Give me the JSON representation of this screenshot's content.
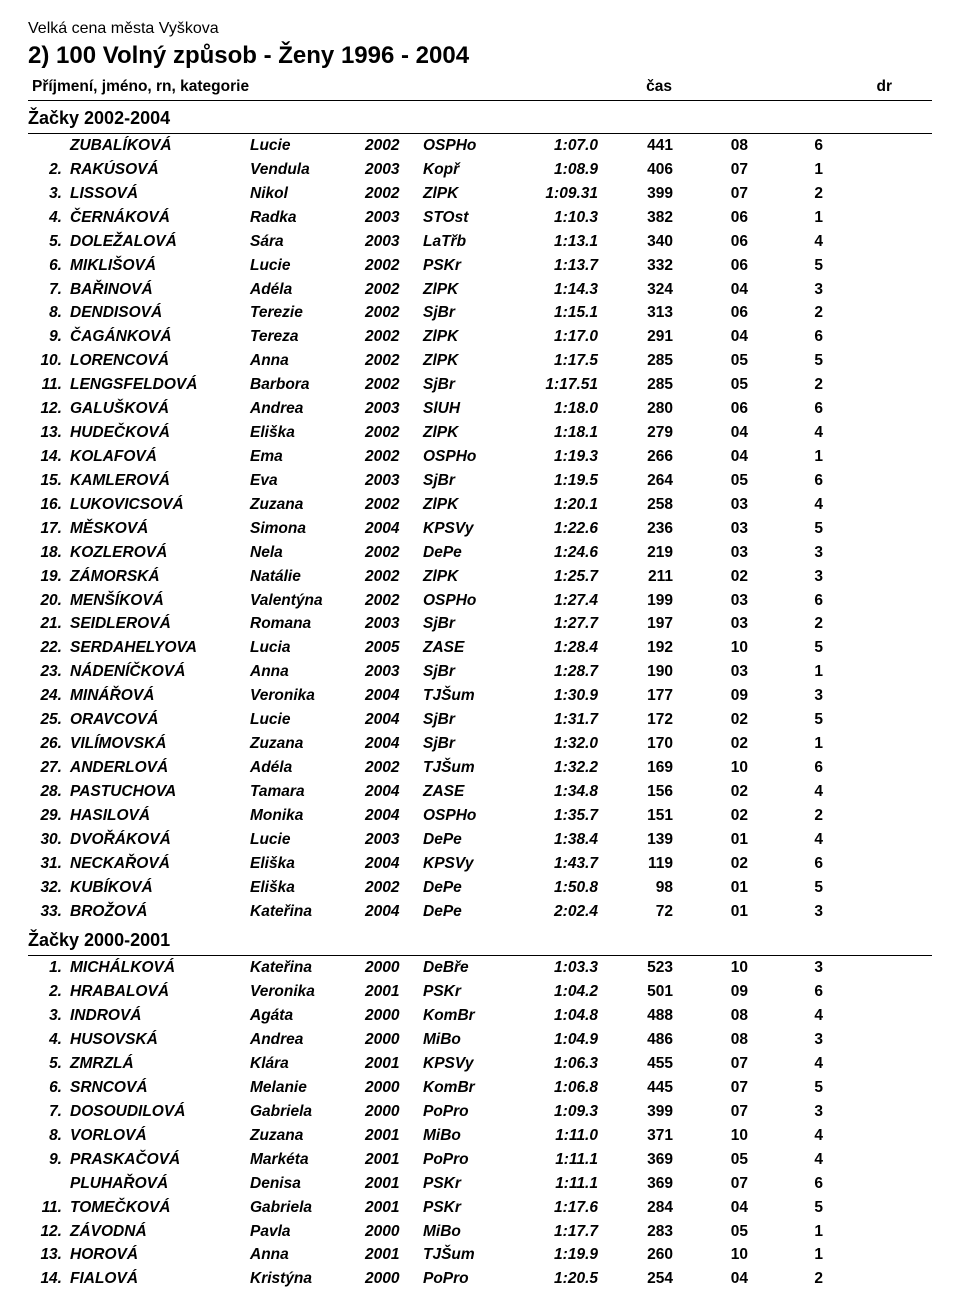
{
  "meet_name": "Velká cena města Vyškova",
  "event_title": "2)  100  Volný způsob  -  Ženy  1996 - 2004",
  "header": {
    "name": "Příjmení, jméno, rn, kategorie",
    "time": "čas",
    "dr": "dr"
  },
  "sections": [
    {
      "title": "Žačky 2002-2004",
      "rows": [
        {
          "rank": "",
          "last": "ZUBALÍKOVÁ",
          "first": "Lucie",
          "year": "2002",
          "club": "OSPHo",
          "time": "1:07.0",
          "pts": "441",
          "c1": "08",
          "c2": "6"
        },
        {
          "rank": "2.",
          "last": "RAKÚSOVÁ",
          "first": "Vendula",
          "year": "2003",
          "club": "Kopř",
          "time": "1:08.9",
          "pts": "406",
          "c1": "07",
          "c2": "1"
        },
        {
          "rank": "3.",
          "last": "LISSOVÁ",
          "first": "Nikol",
          "year": "2002",
          "club": "ZlPK",
          "time": "1:09.31",
          "pts": "399",
          "c1": "07",
          "c2": "2"
        },
        {
          "rank": "4.",
          "last": "ČERNÁKOVÁ",
          "first": "Radka",
          "year": "2003",
          "club": "STOst",
          "time": "1:10.3",
          "pts": "382",
          "c1": "06",
          "c2": "1"
        },
        {
          "rank": "5.",
          "last": "DOLEŽALOVÁ",
          "first": "Sára",
          "year": "2003",
          "club": "LaTřb",
          "time": "1:13.1",
          "pts": "340",
          "c1": "06",
          "c2": "4"
        },
        {
          "rank": "6.",
          "last": "MIKLIŠOVÁ",
          "first": "Lucie",
          "year": "2002",
          "club": "PSKr",
          "time": "1:13.7",
          "pts": "332",
          "c1": "06",
          "c2": "5"
        },
        {
          "rank": "7.",
          "last": "BAŘINOVÁ",
          "first": "Adéla",
          "year": "2002",
          "club": "ZlPK",
          "time": "1:14.3",
          "pts": "324",
          "c1": "04",
          "c2": "3"
        },
        {
          "rank": "8.",
          "last": "DENDISOVÁ",
          "first": "Terezie",
          "year": "2002",
          "club": "SjBr",
          "time": "1:15.1",
          "pts": "313",
          "c1": "06",
          "c2": "2"
        },
        {
          "rank": "9.",
          "last": "ČAGÁNKOVÁ",
          "first": "Tereza",
          "year": "2002",
          "club": "ZlPK",
          "time": "1:17.0",
          "pts": "291",
          "c1": "04",
          "c2": "6"
        },
        {
          "rank": "10.",
          "last": "LORENCOVÁ",
          "first": "Anna",
          "year": "2002",
          "club": "ZlPK",
          "time": "1:17.5",
          "pts": "285",
          "c1": "05",
          "c2": "5"
        },
        {
          "rank": "11.",
          "last": "LENGSFELDOVÁ",
          "first": "Barbora",
          "year": "2002",
          "club": "SjBr",
          "time": "1:17.51",
          "pts": "285",
          "c1": "05",
          "c2": "2"
        },
        {
          "rank": "12.",
          "last": "GALUŠKOVÁ",
          "first": "Andrea",
          "year": "2003",
          "club": "SlUH",
          "time": "1:18.0",
          "pts": "280",
          "c1": "06",
          "c2": "6"
        },
        {
          "rank": "13.",
          "last": "HUDEČKOVÁ",
          "first": "Eliška",
          "year": "2002",
          "club": "ZlPK",
          "time": "1:18.1",
          "pts": "279",
          "c1": "04",
          "c2": "4"
        },
        {
          "rank": "14.",
          "last": "KOLAFOVÁ",
          "first": "Ema",
          "year": "2002",
          "club": "OSPHo",
          "time": "1:19.3",
          "pts": "266",
          "c1": "04",
          "c2": "1"
        },
        {
          "rank": "15.",
          "last": "KAMLEROVÁ",
          "first": "Eva",
          "year": "2003",
          "club": "SjBr",
          "time": "1:19.5",
          "pts": "264",
          "c1": "05",
          "c2": "6"
        },
        {
          "rank": "16.",
          "last": "LUKOVICSOVÁ",
          "first": "Zuzana",
          "year": "2002",
          "club": "ZlPK",
          "time": "1:20.1",
          "pts": "258",
          "c1": "03",
          "c2": "4"
        },
        {
          "rank": "17.",
          "last": "MĚSKOVÁ",
          "first": "Simona",
          "year": "2004",
          "club": "KPSVy",
          "time": "1:22.6",
          "pts": "236",
          "c1": "03",
          "c2": "5"
        },
        {
          "rank": "18.",
          "last": "KOZLEROVÁ",
          "first": "Nela",
          "year": "2002",
          "club": "DePe",
          "time": "1:24.6",
          "pts": "219",
          "c1": "03",
          "c2": "3"
        },
        {
          "rank": "19.",
          "last": "ZÁMORSKÁ",
          "first": "Natálie",
          "year": "2002",
          "club": "ZlPK",
          "time": "1:25.7",
          "pts": "211",
          "c1": "02",
          "c2": "3"
        },
        {
          "rank": "20.",
          "last": "MENŠÍKOVÁ",
          "first": "Valentýna",
          "year": "2002",
          "club": "OSPHo",
          "time": "1:27.4",
          "pts": "199",
          "c1": "03",
          "c2": "6"
        },
        {
          "rank": "21.",
          "last": "SEIDLEROVÁ",
          "first": "Romana",
          "year": "2003",
          "club": "SjBr",
          "time": "1:27.7",
          "pts": "197",
          "c1": "03",
          "c2": "2"
        },
        {
          "rank": "22.",
          "last": "SERDAHELYOVA",
          "first": "Lucia",
          "year": "2005",
          "club": "ZASE",
          "time": "1:28.4",
          "pts": "192",
          "c1": "10",
          "c2": "5"
        },
        {
          "rank": "23.",
          "last": "NÁDENÍČKOVÁ",
          "first": "Anna",
          "year": "2003",
          "club": "SjBr",
          "time": "1:28.7",
          "pts": "190",
          "c1": "03",
          "c2": "1"
        },
        {
          "rank": "24.",
          "last": "MINÁŘOVÁ",
          "first": "Veronika",
          "year": "2004",
          "club": "TJŠum",
          "time": "1:30.9",
          "pts": "177",
          "c1": "09",
          "c2": "3"
        },
        {
          "rank": "25.",
          "last": "ORAVCOVÁ",
          "first": "Lucie",
          "year": "2004",
          "club": "SjBr",
          "time": "1:31.7",
          "pts": "172",
          "c1": "02",
          "c2": "5"
        },
        {
          "rank": "26.",
          "last": "VILÍMOVSKÁ",
          "first": "Zuzana",
          "year": "2004",
          "club": "SjBr",
          "time": "1:32.0",
          "pts": "170",
          "c1": "02",
          "c2": "1"
        },
        {
          "rank": "27.",
          "last": "ANDERLOVÁ",
          "first": "Adéla",
          "year": "2002",
          "club": "TJŠum",
          "time": "1:32.2",
          "pts": "169",
          "c1": "10",
          "c2": "6"
        },
        {
          "rank": "28.",
          "last": "PASTUCHOVA",
          "first": "Tamara",
          "year": "2004",
          "club": "ZASE",
          "time": "1:34.8",
          "pts": "156",
          "c1": "02",
          "c2": "4"
        },
        {
          "rank": "29.",
          "last": "HASILOVÁ",
          "first": "Monika",
          "year": "2004",
          "club": "OSPHo",
          "time": "1:35.7",
          "pts": "151",
          "c1": "02",
          "c2": "2"
        },
        {
          "rank": "30.",
          "last": "DVOŘÁKOVÁ",
          "first": "Lucie",
          "year": "2003",
          "club": "DePe",
          "time": "1:38.4",
          "pts": "139",
          "c1": "01",
          "c2": "4"
        },
        {
          "rank": "31.",
          "last": "NECKAŘOVÁ",
          "first": "Eliška",
          "year": "2004",
          "club": "KPSVy",
          "time": "1:43.7",
          "pts": "119",
          "c1": "02",
          "c2": "6"
        },
        {
          "rank": "32.",
          "last": "KUBÍKOVÁ",
          "first": "Eliška",
          "year": "2002",
          "club": "DePe",
          "time": "1:50.8",
          "pts": "98",
          "c1": "01",
          "c2": "5"
        },
        {
          "rank": "33.",
          "last": "BROŽOVÁ",
          "first": "Kateřina",
          "year": "2004",
          "club": "DePe",
          "time": "2:02.4",
          "pts": "72",
          "c1": "01",
          "c2": "3"
        }
      ]
    },
    {
      "title": "Žačky 2000-2001",
      "rows": [
        {
          "rank": "1.",
          "last": "MICHÁLKOVÁ",
          "first": "Kateřina",
          "year": "2000",
          "club": "DeBře",
          "time": "1:03.3",
          "pts": "523",
          "c1": "10",
          "c2": "3"
        },
        {
          "rank": "2.",
          "last": "HRABALOVÁ",
          "first": "Veronika",
          "year": "2001",
          "club": "PSKr",
          "time": "1:04.2",
          "pts": "501",
          "c1": "09",
          "c2": "6"
        },
        {
          "rank": "3.",
          "last": "INDROVÁ",
          "first": "Agáta",
          "year": "2000",
          "club": "KomBr",
          "time": "1:04.8",
          "pts": "488",
          "c1": "08",
          "c2": "4"
        },
        {
          "rank": "4.",
          "last": "HUSOVSKÁ",
          "first": "Andrea",
          "year": "2000",
          "club": "MiBo",
          "time": "1:04.9",
          "pts": "486",
          "c1": "08",
          "c2": "3"
        },
        {
          "rank": "5.",
          "last": "ZMRZLÁ",
          "first": "Klára",
          "year": "2001",
          "club": "KPSVy",
          "time": "1:06.3",
          "pts": "455",
          "c1": "07",
          "c2": "4"
        },
        {
          "rank": "6.",
          "last": "SRNCOVÁ",
          "first": "Melanie",
          "year": "2000",
          "club": "KomBr",
          "time": "1:06.8",
          "pts": "445",
          "c1": "07",
          "c2": "5"
        },
        {
          "rank": "7.",
          "last": "DOSOUDILOVÁ",
          "first": "Gabriela",
          "year": "2000",
          "club": "PoPro",
          "time": "1:09.3",
          "pts": "399",
          "c1": "07",
          "c2": "3"
        },
        {
          "rank": "8.",
          "last": "VORLOVÁ",
          "first": "Zuzana",
          "year": "2001",
          "club": "MiBo",
          "time": "1:11.0",
          "pts": "371",
          "c1": "10",
          "c2": "4"
        },
        {
          "rank": "9.",
          "last": "PRASKAČOVÁ",
          "first": "Markéta",
          "year": "2001",
          "club": "PoPro",
          "time": "1:11.1",
          "pts": "369",
          "c1": "05",
          "c2": "4"
        },
        {
          "rank": "",
          "last": "PLUHAŘOVÁ",
          "first": "Denisa",
          "year": "2001",
          "club": "PSKr",
          "time": "1:11.1",
          "pts": "369",
          "c1": "07",
          "c2": "6"
        },
        {
          "rank": "11.",
          "last": "TOMEČKOVÁ",
          "first": "Gabriela",
          "year": "2001",
          "club": "PSKr",
          "time": "1:17.6",
          "pts": "284",
          "c1": "04",
          "c2": "5"
        },
        {
          "rank": "12.",
          "last": "ZÁVODNÁ",
          "first": "Pavla",
          "year": "2000",
          "club": "MiBo",
          "time": "1:17.7",
          "pts": "283",
          "c1": "05",
          "c2": "1"
        },
        {
          "rank": "13.",
          "last": "HOROVÁ",
          "first": "Anna",
          "year": "2001",
          "club": "TJŠum",
          "time": "1:19.9",
          "pts": "260",
          "c1": "10",
          "c2": "1"
        },
        {
          "rank": "14.",
          "last": "FIALOVÁ",
          "first": "Kristýna",
          "year": "2000",
          "club": "PoPro",
          "time": "1:20.5",
          "pts": "254",
          "c1": "04",
          "c2": "2"
        }
      ]
    }
  ]
}
